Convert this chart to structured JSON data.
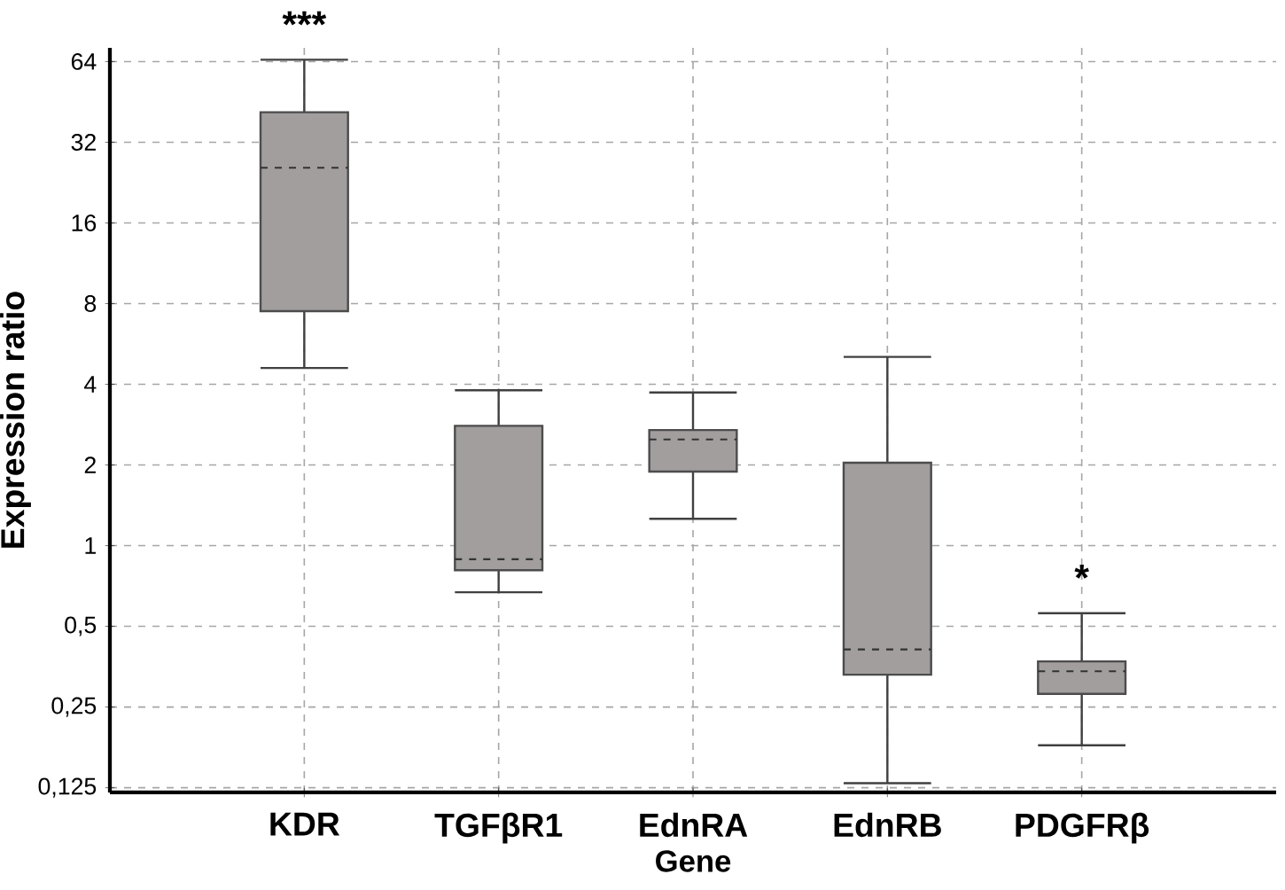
{
  "chart_data": {
    "type": "box",
    "xlabel": "Gene",
    "ylabel": "Expression ratio",
    "log": "y",
    "grid": true,
    "color": "#a29e9e",
    "categories": [
      "KDR",
      "TGFβR1",
      "EdnRA",
      "EdnRB",
      "PDGFRβ"
    ],
    "boxes": [
      {
        "low": 4.6,
        "q1": 7.5,
        "median": 25.7,
        "q3": 41.4,
        "high": 65
      },
      {
        "low": 0.67,
        "q1": 0.81,
        "median": 0.89,
        "q3": 2.8,
        "high": 3.8
      },
      {
        "low": 1.26,
        "q1": 1.89,
        "median": 2.49,
        "q3": 2.7,
        "high": 3.73
      },
      {
        "low": 0.13,
        "q1": 0.33,
        "median": 0.41,
        "q3": 2.04,
        "high": 5.06
      },
      {
        "low": 0.18,
        "q1": 0.28,
        "median": 0.34,
        "q3": 0.37,
        "high": 0.56
      }
    ],
    "ylim": [
      0.12,
      72
    ],
    "yticks": [
      {
        "value": 0.125,
        "label": "0,125"
      },
      {
        "value": 0.25,
        "label": "0,25"
      },
      {
        "value": 0.5,
        "label": "0,5"
      },
      1,
      2,
      4,
      8,
      16,
      32,
      64
    ],
    "annotations": [
      "***",
      "*"
    ]
  }
}
